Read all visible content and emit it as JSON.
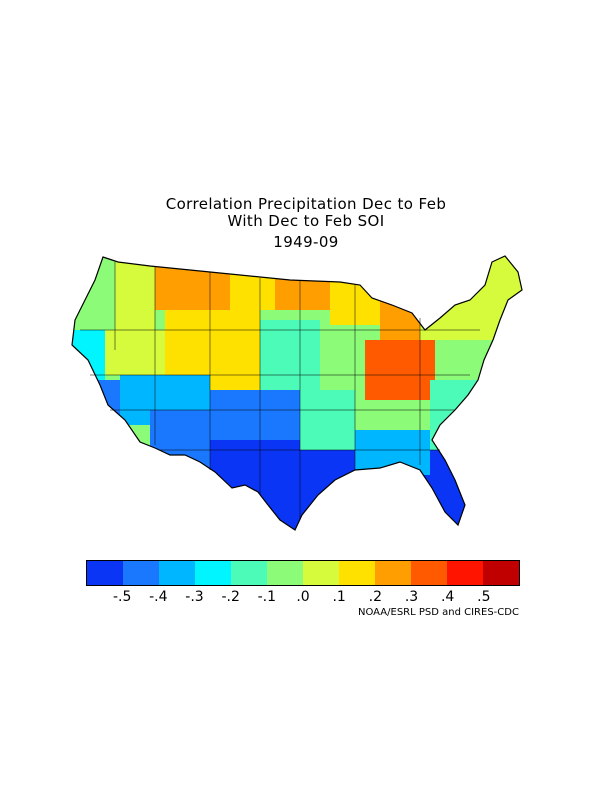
{
  "title": {
    "line1": "Correlation Precipitation Dec to Feb",
    "line2": "With Dec to Feb SOI",
    "period": "1949-09"
  },
  "legend": {
    "colors": [
      "#0a35f5",
      "#1a78ff",
      "#00b6ff",
      "#00f5ff",
      "#4dfbb8",
      "#8cfb78",
      "#d6fb3c",
      "#ffe100",
      "#ff9e00",
      "#ff5a00",
      "#ff1400",
      "#c00000"
    ],
    "ticks": [
      "-.5",
      "-.4",
      "-.3",
      "-.2",
      "-.1",
      ".0",
      ".1",
      ".2",
      ".3",
      ".4",
      ".5"
    ]
  },
  "credit": "NOAA/ESRL PSD and CIRES-CDC",
  "map": {
    "regions": [
      {
        "name": "pacific-northwest",
        "color": "#8cfb78"
      },
      {
        "name": "inland-northwest",
        "color": "#d6fb3c"
      },
      {
        "name": "northern-rockies",
        "color": "#ff9e00"
      },
      {
        "name": "northern-plains",
        "color": "#ffe100"
      },
      {
        "name": "upper-midwest",
        "color": "#ffe100"
      },
      {
        "name": "great-lakes",
        "color": "#ff9e00"
      },
      {
        "name": "ohio-valley",
        "color": "#ff5a00"
      },
      {
        "name": "northeast",
        "color": "#d6fb3c"
      },
      {
        "name": "mid-atlantic",
        "color": "#8cfb78"
      },
      {
        "name": "california-coast",
        "color": "#00f5ff"
      },
      {
        "name": "southern-california",
        "color": "#1a78ff"
      },
      {
        "name": "great-basin",
        "color": "#d6fb3c"
      },
      {
        "name": "four-corners",
        "color": "#00b6ff"
      },
      {
        "name": "central-rockies",
        "color": "#ffe100"
      },
      {
        "name": "central-plains",
        "color": "#4dfbb8"
      },
      {
        "name": "midwest",
        "color": "#8cfb78"
      },
      {
        "name": "southern-plains",
        "color": "#1a78ff"
      },
      {
        "name": "texas",
        "color": "#0a35f5"
      },
      {
        "name": "gulf-coast",
        "color": "#0a35f5"
      },
      {
        "name": "southeast",
        "color": "#00b6ff"
      },
      {
        "name": "carolinas",
        "color": "#4dfbb8"
      },
      {
        "name": "florida",
        "color": "#0a35f5"
      }
    ]
  }
}
